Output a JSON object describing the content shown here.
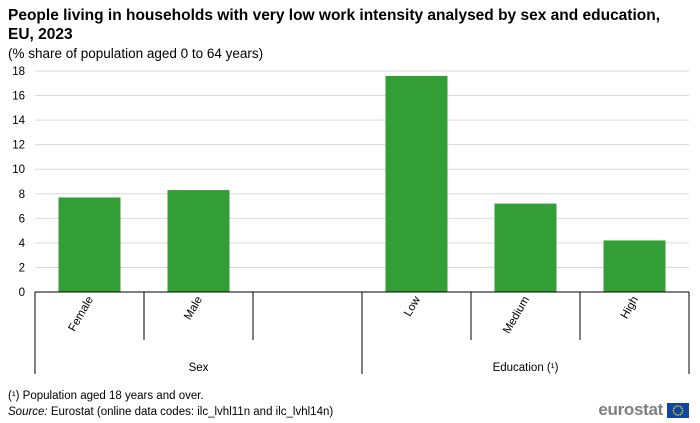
{
  "title": "People living in households with very low work intensity analysed by sex and education, EU, 2023",
  "subtitle": "(% share of population aged 0 to 64 years)",
  "footnote": "(¹) Population aged 18 years and over.",
  "source_label": "Source:",
  "source_text": "Eurostat (online data codes: ilc_lvhl11n and ilc_lvhl14n)",
  "logo_text": "eurostat",
  "colors": {
    "bar": "#339e35",
    "grid": "#d9d9d9",
    "axis": "#000000"
  },
  "chart_data": {
    "type": "bar",
    "title": "People living in households with very low work intensity analysed by sex and education, EU, 2023",
    "ylabel": "% share of population aged 0 to 64 years",
    "ylim": [
      0,
      18
    ],
    "yticks": [
      0,
      2,
      4,
      6,
      8,
      10,
      12,
      14,
      16,
      18
    ],
    "grid": true,
    "categories": [
      "Female",
      "Male",
      "",
      "Low",
      "Medium",
      "High"
    ],
    "values": [
      7.7,
      8.3,
      null,
      17.6,
      7.2,
      4.2
    ],
    "groups": [
      {
        "label": "Sex",
        "categories": [
          "Female",
          "Male",
          ""
        ]
      },
      {
        "label": "Education (¹)",
        "categories": [
          "Low",
          "Medium",
          "High"
        ]
      }
    ]
  }
}
